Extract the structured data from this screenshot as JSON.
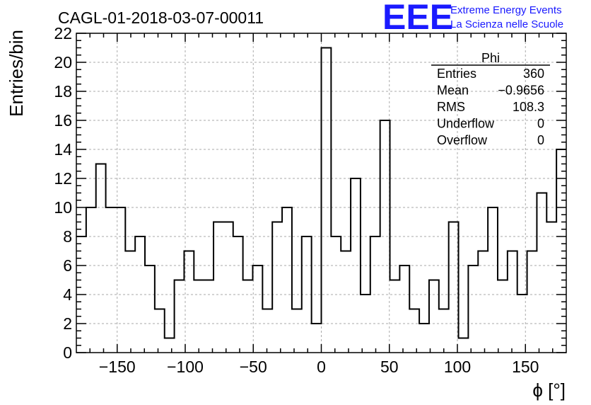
{
  "chart_data": {
    "type": "bar",
    "title": "CAGL-01-2018-03-07-00011",
    "xlabel": "ϕ [°]",
    "ylabel": "Entries/bin",
    "xlim": [
      -180,
      180
    ],
    "ylim": [
      0,
      22
    ],
    "bin_width": 7.2,
    "x_ticks": [
      -150,
      -100,
      -50,
      0,
      50,
      100,
      150
    ],
    "x_tick_labels": [
      "−150",
      "−100",
      "−50",
      "0",
      "50",
      "100",
      "150"
    ],
    "y_ticks": [
      0,
      2,
      4,
      6,
      8,
      10,
      12,
      14,
      16,
      18,
      20,
      22
    ],
    "y_tick_labels": [
      "0",
      "2",
      "4",
      "6",
      "8",
      "10",
      "12",
      "14",
      "16",
      "18",
      "20",
      "22"
    ],
    "values": [
      8,
      10,
      13,
      10,
      10,
      7,
      8,
      6,
      3,
      1,
      5,
      7,
      5,
      5,
      9,
      9,
      8,
      5,
      6,
      3,
      9,
      10,
      3,
      8,
      2,
      21,
      8,
      7,
      12,
      4,
      8,
      16,
      5,
      6,
      3,
      2,
      5,
      3,
      9,
      1,
      6,
      7,
      10,
      5,
      7,
      4,
      7,
      11,
      9,
      14
    ],
    "grid": true,
    "stats": {
      "title": "Phi",
      "rows": [
        {
          "label": "Entries",
          "value": "360"
        },
        {
          "label": "Mean",
          "value": "−0.9656"
        },
        {
          "label": "RMS",
          "value": "108.3"
        },
        {
          "label": "Underflow",
          "value": "0"
        },
        {
          "label": "Overflow",
          "value": "0"
        }
      ]
    }
  },
  "logo": {
    "text": "EEE",
    "line1": "Extreme Energy Events",
    "line2": "La Scienza nelle Scuole",
    "color": "#1a1aff"
  }
}
